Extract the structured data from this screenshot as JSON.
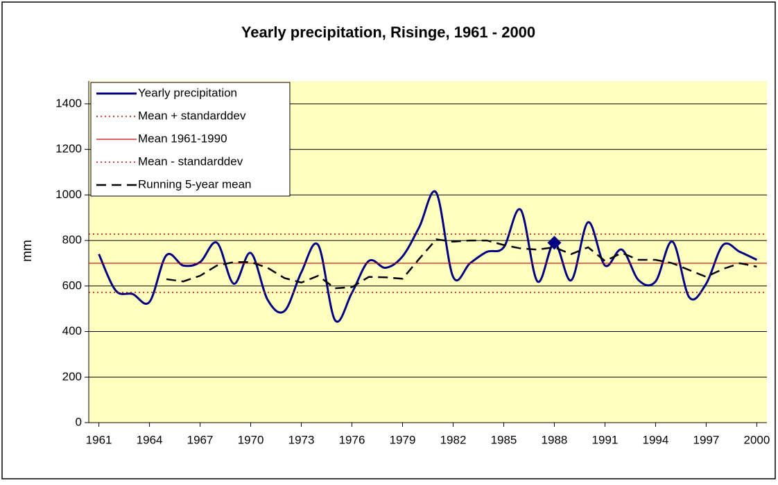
{
  "chart_data": {
    "type": "line",
    "title": "Yearly precipitation, Risinge, 1961 - 2000",
    "y_label": "mm",
    "x": [
      1961,
      1962,
      1963,
      1964,
      1965,
      1966,
      1967,
      1968,
      1969,
      1970,
      1971,
      1972,
      1973,
      1974,
      1975,
      1976,
      1977,
      1978,
      1979,
      1980,
      1981,
      1982,
      1983,
      1984,
      1985,
      1986,
      1987,
      1988,
      1989,
      1990,
      1991,
      1992,
      1993,
      1994,
      1995,
      1996,
      1997,
      1998,
      1999,
      2000
    ],
    "series": [
      {
        "name": "Yearly precipitation",
        "color": "#000080",
        "width": 3,
        "dash": "none",
        "smooth": true,
        "highlight": 27,
        "values": [
          740,
          580,
          565,
          530,
          735,
          690,
          705,
          790,
          610,
          745,
          540,
          490,
          660,
          780,
          450,
          570,
          710,
          680,
          730,
          860,
          1010,
          640,
          700,
          750,
          770,
          935,
          620,
          790,
          625,
          880,
          690,
          760,
          625,
          620,
          795,
          550,
          610,
          780,
          750,
          715
        ]
      },
      {
        "name": "Mean + standarddev",
        "color": "#cc0000",
        "width": 1.5,
        "dash": "2 4",
        "value": 828
      },
      {
        "name": "Mean 1961-1990",
        "color": "#cc0000",
        "width": 1.2,
        "dash": "none",
        "value": 700
      },
      {
        "name": "Mean - standarddev",
        "color": "#cc0000",
        "width": 1.5,
        "dash": "2 4",
        "value": 572
      },
      {
        "name": "Running 5-year mean",
        "color": "#000000",
        "width": 2.5,
        "dash": "14 8",
        "smooth": false,
        "values": [
          null,
          null,
          null,
          null,
          630,
          620,
          645,
          690,
          705,
          705,
          680,
          635,
          615,
          645,
          590,
          595,
          640,
          638,
          632,
          720,
          805,
          795,
          800,
          800,
          780,
          765,
          760,
          770,
          740,
          770,
          710,
          745,
          715,
          715,
          700,
          670,
          640,
          675,
          700,
          685
        ]
      }
    ],
    "xlim": [
      1960.4,
      2000.6
    ],
    "xticks": [
      1961,
      1964,
      1967,
      1970,
      1973,
      1976,
      1979,
      1982,
      1985,
      1988,
      1991,
      1994,
      1997,
      2000
    ],
    "ylim": [
      0,
      1500
    ],
    "yticks": [
      0,
      200,
      400,
      600,
      800,
      1000,
      1200,
      1400
    ],
    "grid": true,
    "plot_background": "#ffffc0",
    "legend": "top-left"
  }
}
